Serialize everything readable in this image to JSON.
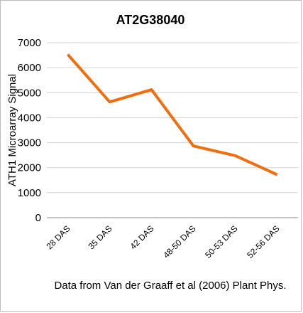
{
  "chart_data": {
    "type": "line",
    "title": "AT2G38040",
    "xlabel": "",
    "ylabel": "ATH1 Microarray Signal",
    "categories": [
      "28 DAS",
      "35 DAS",
      "42 DAS",
      "48-50 DAS",
      "50-53 DAS",
      "52-56 DAS"
    ],
    "series": [
      {
        "values": [
          6530,
          4630,
          5120,
          2870,
          2480,
          1720
        ]
      }
    ],
    "ylim": [
      0,
      7000
    ],
    "yticks": [
      "0",
      "1000",
      "2000",
      "3000",
      "4000",
      "5000",
      "6000",
      "7000"
    ],
    "grid": true,
    "legend": "none",
    "line_color": "#f26d0d",
    "grid_color": "#d0d0d0"
  },
  "source_note": "Data from Van der Graaff et al (2006) Plant Phys."
}
